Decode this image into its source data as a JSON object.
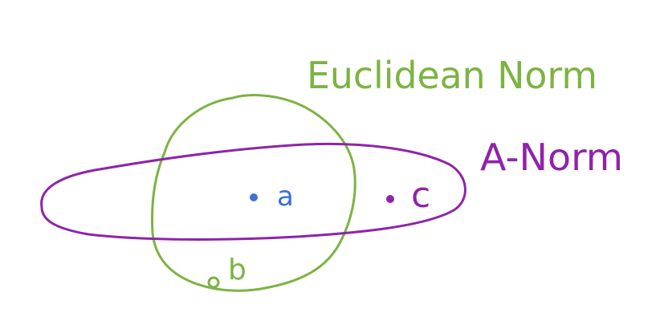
{
  "labels": {
    "euclidean_norm": "Euclidean Norm",
    "a_norm": "A-Norm",
    "point_a": "a",
    "point_b": "b",
    "point_c": "c"
  },
  "colors": {
    "euclidean": "#7cb342",
    "a_norm": "#8e24aa",
    "point_a": "#3d6fd8",
    "point_b": "#7cb342",
    "point_c": "#8e24aa",
    "background": "#ffffff"
  }
}
